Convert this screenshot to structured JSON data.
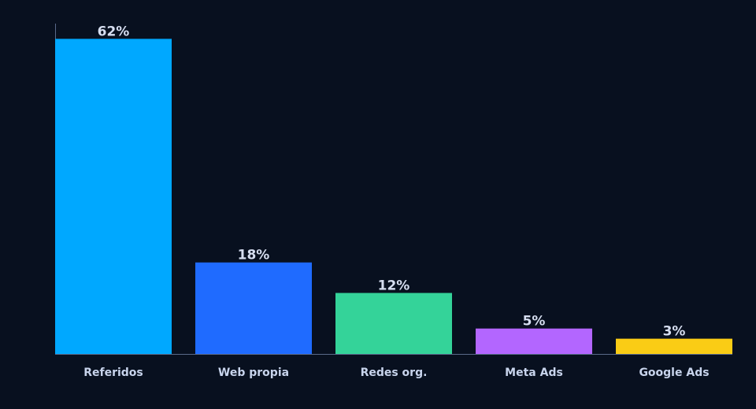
{
  "chart_data": {
    "type": "bar",
    "categories": [
      "Referidos",
      "Web propia",
      "Redes org.",
      "Meta Ads",
      "Google Ads"
    ],
    "values": [
      62,
      18,
      12,
      5,
      3
    ],
    "value_labels": [
      "62%",
      "18%",
      "12%",
      "5%",
      "3%"
    ],
    "colors": [
      "#00a8ff",
      "#1f6bff",
      "#34d399",
      "#b366ff",
      "#facc15"
    ],
    "ylim": [
      0,
      65
    ]
  }
}
